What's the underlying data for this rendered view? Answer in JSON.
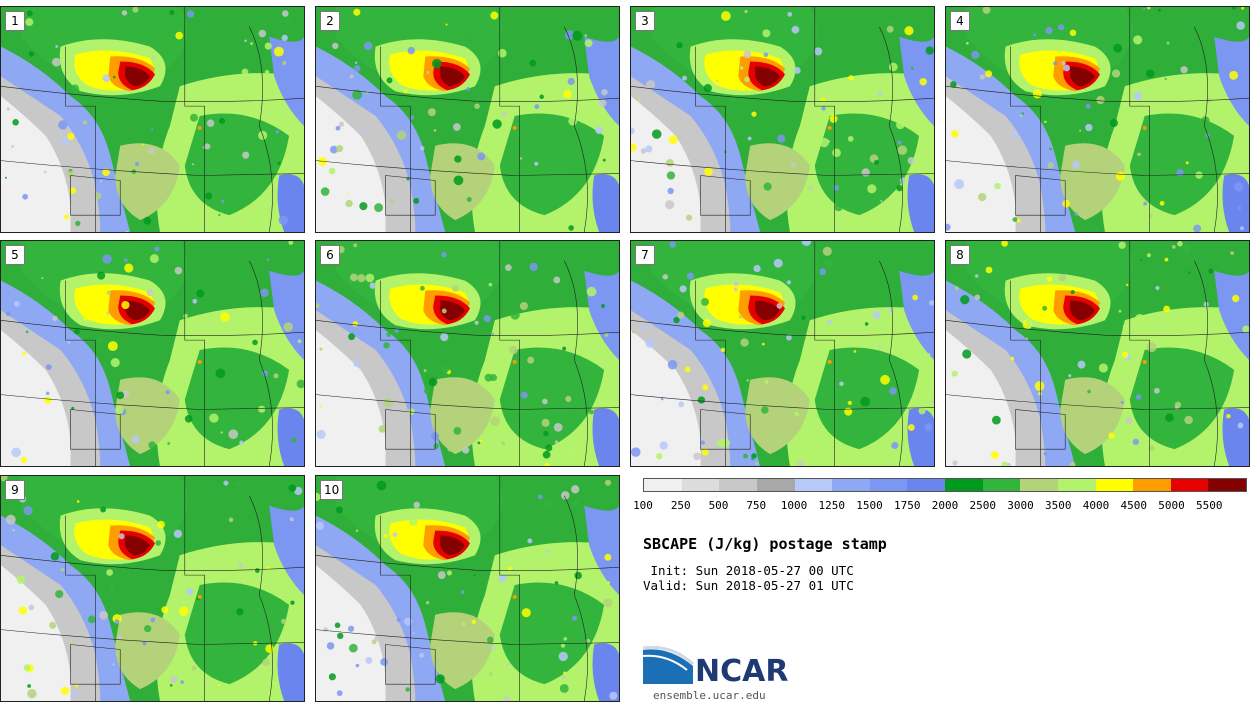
{
  "panels": [
    "1",
    "2",
    "3",
    "4",
    "5",
    "6",
    "7",
    "8",
    "9",
    "10"
  ],
  "colorbar": {
    "colors": [
      "#f0f0f0",
      "#dcdcdc",
      "#c8c8c8",
      "#a8a8a8",
      "#b7c8f9",
      "#8fa8f4",
      "#7b97f2",
      "#6a86ee",
      "#009a1c",
      "#33b43c",
      "#b4d27a",
      "#b3f36b",
      "#ffff00",
      "#ff9d00",
      "#e60000",
      "#850000"
    ],
    "tick_labels": [
      "100",
      "250",
      "500",
      "750",
      "1000",
      "1250",
      "1500",
      "1750",
      "2000",
      "2500",
      "3000",
      "3500",
      "4000",
      "4500",
      "5000",
      "5500"
    ]
  },
  "title": "SBCAPE (J/kg) postage stamp",
  "init": " Init: Sun 2018-05-27 00 UTC",
  "valid": "Valid: Sun 2018-05-27 01 UTC",
  "logo": {
    "word": "NCAR",
    "url": "ensemble.ucar.edu"
  }
}
